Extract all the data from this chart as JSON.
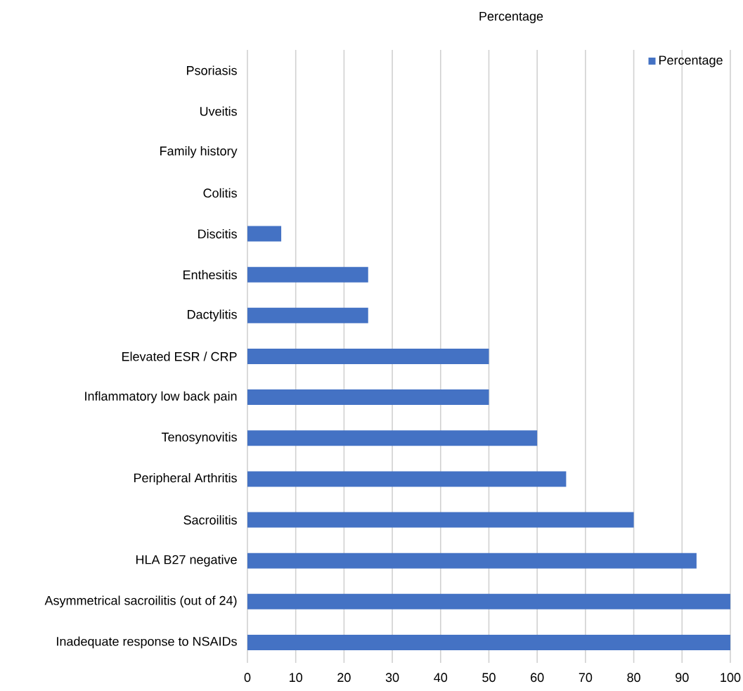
{
  "chart_data": {
    "type": "bar",
    "orientation": "horizontal",
    "title": "Percentage",
    "categories": [
      "Psoriasis",
      "Uveitis",
      "Family history",
      "Colitis",
      "Discitis",
      "Enthesitis",
      "Dactylitis",
      "Elevated ESR / CRP",
      "Inflammatory low back pain",
      "Tenosynovitis",
      "Peripheral Arthritis",
      "Sacroilitis",
      "HLA B27 negative",
      "Asymmetrical sacroilitis (out of 24)",
      "Inadequate response to NSAIDs"
    ],
    "series": [
      {
        "name": "Percentage",
        "color": "#4472c4",
        "values": [
          0,
          0,
          0,
          0,
          7,
          25,
          25,
          50,
          50,
          60,
          66,
          80,
          93,
          100,
          100
        ]
      }
    ],
    "xlim": [
      0,
      100
    ],
    "xticks": [
      0,
      10,
      20,
      30,
      40,
      50,
      60,
      70,
      80,
      90,
      100
    ],
    "grid": "x",
    "legend": "top right"
  }
}
